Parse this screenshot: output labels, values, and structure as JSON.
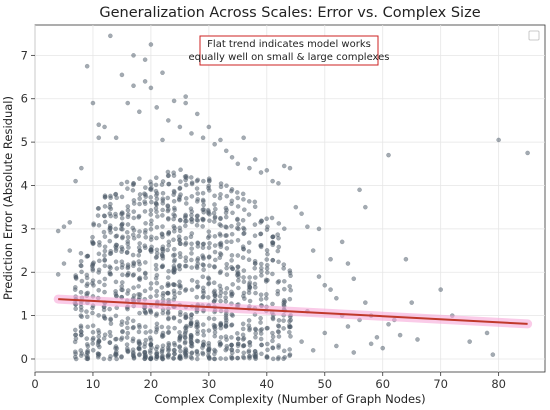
{
  "chart_data": {
    "type": "scatter",
    "title": "Generalization Across Scales: Error vs. Complex Size",
    "xlabel": "Complex Complexity (Number of Graph Nodes)",
    "ylabel": "Prediction Error (Absolute Residual)",
    "xlim": [
      0,
      88
    ],
    "ylim": [
      -0.3,
      7.7
    ],
    "xticks": [
      "0",
      "10",
      "20",
      "30",
      "40",
      "50",
      "60",
      "70",
      "80"
    ],
    "yticks": [
      "0",
      "1",
      "2",
      "3",
      "4",
      "5",
      "6",
      "7"
    ],
    "grid": true,
    "legend": "top-right (empty)",
    "annotation": {
      "lines": [
        "Flat trend indicates model works",
        "equally well on small & large complexes"
      ],
      "border_color": "#cc2222"
    },
    "trend": {
      "x": [
        4,
        85
      ],
      "y": [
        1.38,
        0.81
      ],
      "color": "#c0392b",
      "band_color": "#f7a8d8"
    },
    "point_color": "#4a5866",
    "series": [
      {
        "points": [
          [
            9,
            6.75
          ],
          [
            10,
            5.9
          ],
          [
            11,
            5.4
          ],
          [
            12,
            5.35
          ],
          [
            13,
            7.45
          ],
          [
            14,
            5.1
          ],
          [
            15,
            6.55
          ],
          [
            16,
            5.9
          ],
          [
            17,
            7.0
          ],
          [
            18,
            5.7
          ],
          [
            19,
            6.4
          ],
          [
            20,
            7.25
          ],
          [
            21,
            5.8
          ],
          [
            22,
            6.6
          ],
          [
            23,
            5.5
          ],
          [
            24,
            5.95
          ],
          [
            25,
            5.35
          ],
          [
            26,
            6.05
          ],
          [
            27,
            5.2
          ],
          [
            28,
            5.65
          ],
          [
            29,
            5.1
          ],
          [
            30,
            5.35
          ],
          [
            31,
            4.95
          ],
          [
            32,
            5.05
          ],
          [
            33,
            4.8
          ],
          [
            34,
            4.65
          ],
          [
            35,
            4.5
          ],
          [
            36,
            5.1
          ],
          [
            37,
            4.4
          ],
          [
            38,
            4.6
          ],
          [
            39,
            4.3
          ],
          [
            40,
            4.35
          ],
          [
            41,
            4.1
          ],
          [
            42,
            4.05
          ],
          [
            43,
            4.45
          ],
          [
            44,
            4.4
          ],
          [
            45,
            3.5
          ],
          [
            46,
            3.35
          ],
          [
            47,
            3.05
          ],
          [
            19,
            6.9
          ],
          [
            20,
            6.25
          ],
          [
            17,
            6.3
          ],
          [
            26,
            5.9
          ],
          [
            22,
            5.05
          ],
          [
            11,
            5.1
          ],
          [
            8,
            4.4
          ],
          [
            7,
            4.1
          ],
          [
            6,
            3.15
          ],
          [
            5,
            3.05
          ],
          [
            4,
            2.95
          ],
          [
            6,
            2.5
          ],
          [
            5,
            2.2
          ],
          [
            4,
            1.95
          ],
          [
            48,
            2.5
          ],
          [
            49,
            1.9
          ],
          [
            50,
            1.7
          ],
          [
            51,
            1.6
          ],
          [
            52,
            1.4
          ],
          [
            53,
            1.0
          ],
          [
            54,
            2.2
          ],
          [
            55,
            1.85
          ],
          [
            56,
            3.9
          ],
          [
            57,
            1.3
          ],
          [
            58,
            1.0
          ],
          [
            59,
            0.5
          ],
          [
            60,
            0.25
          ],
          [
            61,
            4.7
          ],
          [
            62,
            0.9
          ],
          [
            63,
            0.55
          ],
          [
            64,
            2.3
          ],
          [
            65,
            1.3
          ],
          [
            66,
            0.45
          ],
          [
            70,
            1.6
          ],
          [
            72,
            1.0
          ],
          [
            75,
            0.4
          ],
          [
            78,
            0.6
          ],
          [
            79,
            0.1
          ],
          [
            80,
            5.05
          ],
          [
            85,
            4.75
          ],
          [
            57,
            3.5
          ],
          [
            53,
            2.7
          ],
          [
            51,
            2.3
          ],
          [
            49,
            3.0
          ],
          [
            50,
            0.6
          ],
          [
            52,
            0.3
          ],
          [
            55,
            0.15
          ],
          [
            58,
            0.35
          ],
          [
            61,
            0.8
          ],
          [
            48,
            0.2
          ],
          [
            47,
            1.1
          ],
          [
            46,
            0.4
          ],
          [
            54,
            0.75
          ],
          [
            56,
            0.9
          ]
        ]
      }
    ]
  }
}
